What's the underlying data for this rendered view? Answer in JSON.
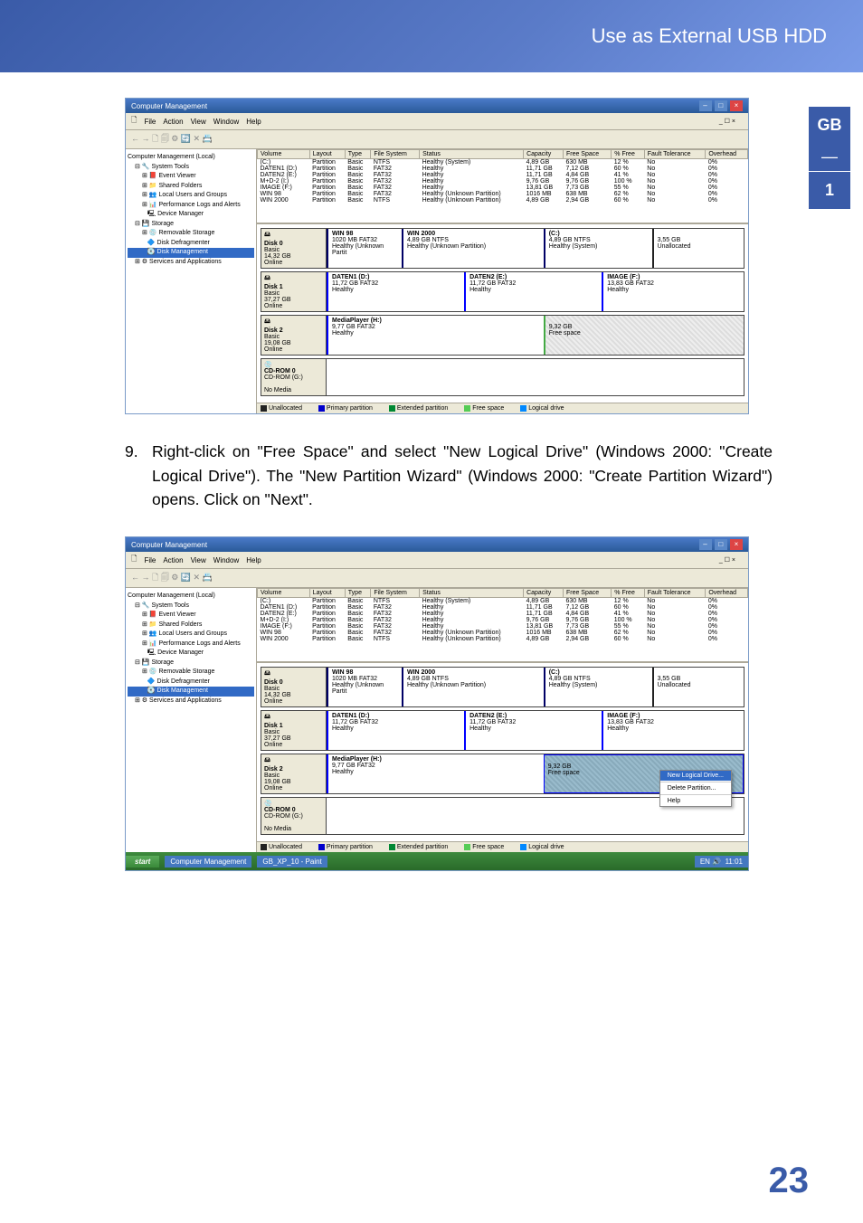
{
  "header": {
    "title": "Use as External USB HDD"
  },
  "sidetab": {
    "region": "GB",
    "sep": "—",
    "num": "1"
  },
  "instruction": {
    "num": "9.",
    "text": "Right-click on \"Free Space\" and select \"New Logical Drive\" (Windows 2000: \"Create Logical Drive\"). The \"New Partition Wizard\" (Windows 2000: \"Create Partition Wizard\") opens. Click on \"Next\"."
  },
  "pagenum": "23",
  "scr": {
    "title": "Computer Management",
    "menu": {
      "file": "File",
      "action": "Action",
      "view": "View",
      "window": "Window",
      "help": "Help"
    },
    "toolbar": "← → 🗋 🗐 ⚙ 🔄 ✕ 📇",
    "tree": {
      "root": "Computer Management (Local)",
      "systools": "System Tools",
      "ev": "Event Viewer",
      "sf": "Shared Folders",
      "lug": "Local Users and Groups",
      "pla": "Performance Logs and Alerts",
      "dm": "Device Manager",
      "storage": "Storage",
      "rs": "Removable Storage",
      "dd": "Disk Defragmenter",
      "dmg": "Disk Management",
      "sa": "Services and Applications"
    },
    "cols": [
      "Volume",
      "Layout",
      "Type",
      "File System",
      "Status",
      "Capacity",
      "Free Space",
      "% Free",
      "Fault Tolerance",
      "Overhead"
    ],
    "vols1": [
      [
        "(C:)",
        "Partition",
        "Basic",
        "NTFS",
        "Healthy (System)",
        "4,89 GB",
        "630 MB",
        "12 %",
        "No",
        "0%"
      ],
      [
        "DATEN1 (D:)",
        "Partition",
        "Basic",
        "FAT32",
        "Healthy",
        "11,71 GB",
        "7,12 GB",
        "60 %",
        "No",
        "0%"
      ],
      [
        "DATEN2 (E:)",
        "Partition",
        "Basic",
        "FAT32",
        "Healthy",
        "11,71 GB",
        "4,84 GB",
        "41 %",
        "No",
        "0%"
      ],
      [
        "M+D-2 (I:)",
        "Partition",
        "Basic",
        "FAT32",
        "Healthy",
        "9,76 GB",
        "9,76 GB",
        "100 %",
        "No",
        "0%"
      ],
      [
        "IMAGE (F:)",
        "Partition",
        "Basic",
        "FAT32",
        "Healthy",
        "13,81 GB",
        "7,73 GB",
        "55 %",
        "No",
        "0%"
      ],
      [
        "WIN 98",
        "Partition",
        "Basic",
        "FAT32",
        "Healthy (Unknown Partition)",
        "1016 MB",
        "638 MB",
        "62 %",
        "No",
        "0%"
      ],
      [
        "WIN 2000",
        "Partition",
        "Basic",
        "NTFS",
        "Healthy (Unknown Partition)",
        "4,89 GB",
        "2,94 GB",
        "60 %",
        "No",
        "0%"
      ]
    ],
    "vols2": [
      [
        "(C:)",
        "Partition",
        "Basic",
        "NTFS",
        "Healthy (System)",
        "4,89 GB",
        "630 MB",
        "12 %",
        "No",
        "0%"
      ],
      [
        "DATEN1 (D:)",
        "Partition",
        "Basic",
        "FAT32",
        "Healthy",
        "11,71 GB",
        "7,12 GB",
        "60 %",
        "No",
        "0%"
      ],
      [
        "DATEN2 (E:)",
        "Partition",
        "Basic",
        "FAT32",
        "Healthy",
        "11,71 GB",
        "4,84 GB",
        "41 %",
        "No",
        "0%"
      ],
      [
        "M+D-2 (I:)",
        "Partition",
        "Basic",
        "FAT32",
        "Healthy",
        "9,76 GB",
        "9,76 GB",
        "100 %",
        "No",
        "0%"
      ],
      [
        "IMAGE (F:)",
        "Partition",
        "Basic",
        "FAT32",
        "Healthy",
        "13,81 GB",
        "7,73 GB",
        "55 %",
        "No",
        "0%"
      ],
      [
        "WIN 98",
        "Partition",
        "Basic",
        "FAT32",
        "Healthy (Unknown Partition)",
        "1016 MB",
        "638 MB",
        "62 %",
        "No",
        "0%"
      ],
      [
        "WIN 2000",
        "Partition",
        "Basic",
        "NTFS",
        "Healthy (Unknown Partition)",
        "4,89 GB",
        "2,94 GB",
        "60 %",
        "No",
        "0%"
      ]
    ],
    "disks": {
      "d0": {
        "label": "Disk 0",
        "type": "Basic",
        "size": "14,32 GB",
        "state": "Online",
        "parts": [
          {
            "n": "WIN 98",
            "d": "1020 MB FAT32",
            "s": "Healthy (Unknown Partit",
            "w": "18%",
            "cls": "sys"
          },
          {
            "n": "WIN 2000",
            "d": "4,89 GB NTFS",
            "s": "Healthy (Unknown Partition)",
            "w": "34%",
            "cls": "sys"
          },
          {
            "n": "(C:)",
            "d": "4,89 GB NTFS",
            "s": "Healthy (System)",
            "w": "26%",
            "cls": "sys"
          },
          {
            "n": "",
            "d": "3,55 GB",
            "s": "Unallocated",
            "w": "22%",
            "cls": "unalloc"
          }
        ]
      },
      "d1": {
        "label": "Disk 1",
        "type": "Basic",
        "size": "37,27 GB",
        "state": "Online",
        "parts": [
          {
            "n": "DATEN1 (D:)",
            "d": "11,72 GB FAT32",
            "s": "Healthy",
            "w": "33%",
            "cls": ""
          },
          {
            "n": "DATEN2 (E:)",
            "d": "11,72 GB FAT32",
            "s": "Healthy",
            "w": "33%",
            "cls": ""
          },
          {
            "n": "IMAGE (F:)",
            "d": "13,83 GB FAT32",
            "s": "Healthy",
            "w": "34%",
            "cls": ""
          }
        ]
      },
      "d2": {
        "label": "Disk 2",
        "type": "Basic",
        "size": "19,08 GB",
        "state": "Online",
        "parts": [
          {
            "n": "MediaPlayer (H:)",
            "d": "9,77 GB FAT32",
            "s": "Healthy",
            "w": "52%",
            "cls": ""
          },
          {
            "n": "",
            "d": "9,32 GB",
            "s": "Free space",
            "w": "48%",
            "cls": "free"
          }
        ]
      },
      "cd": {
        "label": "CD-ROM 0",
        "type": "CD-ROM (G:)",
        "size": "",
        "state": "No Media"
      }
    },
    "legend": {
      "un": "Unallocated",
      "pp": "Primary partition",
      "ep": "Extended partition",
      "fs": "Free space",
      "ld": "Logical drive"
    },
    "ctx": {
      "new": "New Logical Drive...",
      "del": "Delete Partition...",
      "help": "Help"
    },
    "taskbar": {
      "start": "start",
      "task1": "Computer Management",
      "task2": "GB_XP_10 - Paint",
      "time": "11:01"
    }
  }
}
